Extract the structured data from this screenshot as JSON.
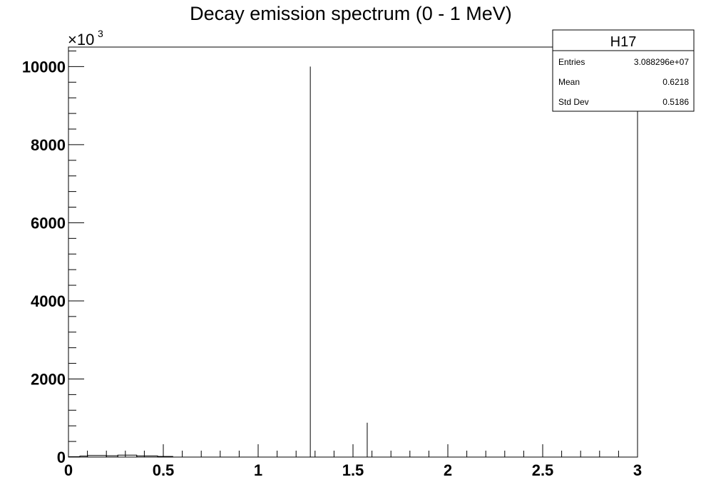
{
  "chart_data": {
    "type": "histogram",
    "title": "Decay emission spectrum (0 - 1 MeV)",
    "xlabel": "",
    "ylabel": "",
    "xlim": [
      0,
      3
    ],
    "ylim": [
      0,
      10500
    ],
    "y_multiplier": {
      "base": "×10",
      "exponent": "3"
    },
    "x_ticks": [
      {
        "value": 0,
        "label": "0"
      },
      {
        "value": 0.5,
        "label": "0.5"
      },
      {
        "value": 1,
        "label": "1"
      },
      {
        "value": 1.5,
        "label": "1.5"
      },
      {
        "value": 2,
        "label": "2"
      },
      {
        "value": 2.5,
        "label": "2.5"
      },
      {
        "value": 3,
        "label": "3"
      }
    ],
    "y_ticks": [
      {
        "value": 0,
        "label": "0"
      },
      {
        "value": 2000,
        "label": "2000"
      },
      {
        "value": 4000,
        "label": "4000"
      },
      {
        "value": 6000,
        "label": "6000"
      },
      {
        "value": 8000,
        "label": "8000"
      },
      {
        "value": 10000,
        "label": "10000"
      }
    ],
    "peaks": [
      {
        "x": 1.275,
        "y": 10000
      },
      {
        "x": 1.575,
        "y": 880
      }
    ],
    "continuum": [
      {
        "x0": 0.0,
        "x1": 0.06,
        "y": 10
      },
      {
        "x0": 0.06,
        "x1": 0.1,
        "y": 25
      },
      {
        "x0": 0.1,
        "x1": 0.2,
        "y": 40
      },
      {
        "x0": 0.2,
        "x1": 0.26,
        "y": 35
      },
      {
        "x0": 0.26,
        "x1": 0.36,
        "y": 50
      },
      {
        "x0": 0.36,
        "x1": 0.47,
        "y": 30
      },
      {
        "x0": 0.47,
        "x1": 0.55,
        "y": 15
      }
    ],
    "stats": {
      "title": "H17",
      "rows": [
        {
          "label": "Entries",
          "value": "3.088296e+07"
        },
        {
          "label": "Mean",
          "value": "0.6218"
        },
        {
          "label": "Std Dev",
          "value": "0.5186"
        }
      ]
    }
  }
}
